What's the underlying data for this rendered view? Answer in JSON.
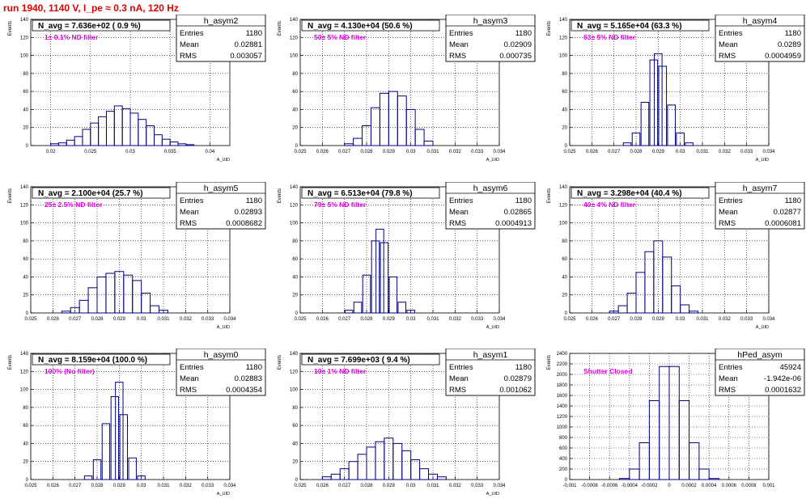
{
  "page_title": "run 1940,  1140 V, I_pe ≈ 0.3 nA, 120 Hz",
  "colors": {
    "title": "#e00000",
    "annotation": "#e600e6",
    "histogram": "#000080",
    "grid": "#000000"
  },
  "chart_data": [
    {
      "type": "histogram",
      "hist_name": "h_asym2",
      "title": "N_avg = 7.636e+02 ( 0.9 %)",
      "annotation": "1± 0.1% ND filter",
      "stats": [
        [
          "Entries",
          "1180"
        ],
        [
          "Mean",
          "0.02881"
        ],
        [
          "RMS",
          "0.003057"
        ]
      ],
      "xlabel": "A_UID",
      "ylabel": "Events",
      "xlim": [
        0.0175,
        0.0425
      ],
      "ylim": [
        0,
        140
      ],
      "xticks": [
        0.02,
        0.025,
        0.03,
        0.035,
        0.04
      ],
      "xticklabels": [
        "0.02",
        "0.025",
        "0.03",
        "0.035",
        "0.04"
      ],
      "yticks": [
        0,
        20,
        40,
        60,
        80,
        100,
        120,
        140
      ],
      "yticklabels": [
        "0",
        "20",
        "40",
        "60",
        "80",
        "100",
        "120",
        "140"
      ],
      "x": [
        0.0205,
        0.0215,
        0.0225,
        0.0235,
        0.0245,
        0.0255,
        0.0265,
        0.0275,
        0.0285,
        0.0295,
        0.0305,
        0.0315,
        0.0325,
        0.0335,
        0.0345,
        0.0355,
        0.0365,
        0.0375
      ],
      "values": [
        2,
        3,
        6,
        10,
        18,
        25,
        32,
        38,
        44,
        41,
        36,
        29,
        22,
        12,
        7,
        4,
        2,
        1
      ]
    },
    {
      "type": "histogram",
      "hist_name": "h_asym3",
      "title": "N_avg = 4.130e+04 (50.6 %)",
      "annotation": "50± 5% ND filter",
      "stats": [
        [
          "Entries",
          "1180"
        ],
        [
          "Mean",
          "0.02909"
        ],
        [
          "RMS",
          "0.000735"
        ]
      ],
      "xlabel": "A_UID",
      "ylabel": "Events",
      "xlim": [
        0.025,
        0.034
      ],
      "ylim": [
        0,
        140
      ],
      "xticks": [
        0.025,
        0.026,
        0.027,
        0.028,
        0.029,
        0.03,
        0.031,
        0.032,
        0.033,
        0.034
      ],
      "xticklabels": [
        "0.025",
        "0.026",
        "0.027",
        "0.028",
        "0.029",
        "0.03",
        "0.031",
        "0.032",
        "0.033",
        "0.034"
      ],
      "yticks": [
        0,
        20,
        40,
        60,
        80,
        100,
        120,
        140
      ],
      "yticklabels": [
        "0",
        "20",
        "40",
        "60",
        "80",
        "100",
        "120",
        "140"
      ],
      "x": [
        0.0272,
        0.0276,
        0.028,
        0.0284,
        0.0288,
        0.0292,
        0.0296,
        0.03,
        0.0304,
        0.0308
      ],
      "values": [
        2,
        8,
        22,
        42,
        58,
        60,
        55,
        40,
        18,
        5
      ]
    },
    {
      "type": "histogram",
      "hist_name": "h_asym4",
      "title": "N_avg = 5.165e+04 (63.3 %)",
      "annotation": "63± 5% ND filter",
      "stats": [
        [
          "Entries",
          "1180"
        ],
        [
          "Mean",
          "0.0289"
        ],
        [
          "RMS",
          "0.0004959"
        ]
      ],
      "xlabel": "A_UID",
      "ylabel": "Events",
      "xlim": [
        0.025,
        0.034
      ],
      "ylim": [
        0,
        140
      ],
      "xticks": [
        0.025,
        0.026,
        0.027,
        0.028,
        0.029,
        0.03,
        0.031,
        0.032,
        0.033,
        0.034
      ],
      "xticklabels": [
        "0.025",
        "0.026",
        "0.027",
        "0.028",
        "0.029",
        "0.03",
        "0.031",
        "0.032",
        "0.033",
        "0.034"
      ],
      "yticks": [
        0,
        20,
        40,
        60,
        80,
        100,
        120,
        140
      ],
      "yticklabels": [
        "0",
        "20",
        "40",
        "60",
        "80",
        "100",
        "120",
        "140"
      ],
      "x": [
        0.0276,
        0.028,
        0.0284,
        0.0288,
        0.029,
        0.0292,
        0.0296,
        0.03,
        0.0304
      ],
      "values": [
        3,
        14,
        48,
        95,
        102,
        88,
        45,
        14,
        3
      ]
    },
    {
      "type": "histogram",
      "hist_name": "h_asym5",
      "title": "N_avg = 2.100e+04 (25.7 %)",
      "annotation": "25± 2.5% ND filter",
      "stats": [
        [
          "Entries",
          "1180"
        ],
        [
          "Mean",
          "0.02893"
        ],
        [
          "RMS",
          "0.0008682"
        ]
      ],
      "xlabel": "A_UID",
      "ylabel": "Events",
      "xlim": [
        0.025,
        0.034
      ],
      "ylim": [
        0,
        140
      ],
      "xticks": [
        0.025,
        0.026,
        0.027,
        0.028,
        0.029,
        0.03,
        0.031,
        0.032,
        0.033,
        0.034
      ],
      "xticklabels": [
        "0.025",
        "0.026",
        "0.027",
        "0.028",
        "0.029",
        "0.03",
        "0.031",
        "0.032",
        "0.033",
        "0.034"
      ],
      "yticks": [
        0,
        20,
        40,
        60,
        80,
        100,
        120,
        140
      ],
      "yticklabels": [
        "0",
        "20",
        "40",
        "60",
        "80",
        "100",
        "120",
        "140"
      ],
      "x": [
        0.0266,
        0.027,
        0.0274,
        0.0278,
        0.0282,
        0.0286,
        0.029,
        0.0294,
        0.0298,
        0.0302,
        0.0306,
        0.031
      ],
      "values": [
        2,
        6,
        14,
        28,
        40,
        44,
        46,
        42,
        36,
        22,
        8,
        3
      ]
    },
    {
      "type": "histogram",
      "hist_name": "h_asym6",
      "title": "N_avg = 6.513e+04 (79.8 %)",
      "annotation": "79± 5% ND filter",
      "stats": [
        [
          "Entries",
          "1180"
        ],
        [
          "Mean",
          "0.02865"
        ],
        [
          "RMS",
          "0.0004913"
        ]
      ],
      "xlabel": "A_UID",
      "ylabel": "Events",
      "xlim": [
        0.025,
        0.034
      ],
      "ylim": [
        0,
        140
      ],
      "xticks": [
        0.025,
        0.026,
        0.027,
        0.028,
        0.029,
        0.03,
        0.031,
        0.032,
        0.033,
        0.034
      ],
      "xticklabels": [
        "0.025",
        "0.026",
        "0.027",
        "0.028",
        "0.029",
        "0.03",
        "0.031",
        "0.032",
        "0.033",
        "0.034"
      ],
      "yticks": [
        0,
        20,
        40,
        60,
        80,
        100,
        120,
        140
      ],
      "yticklabels": [
        "0",
        "20",
        "40",
        "60",
        "80",
        "100",
        "120",
        "140"
      ],
      "x": [
        0.0272,
        0.0276,
        0.028,
        0.0284,
        0.0286,
        0.0288,
        0.0292,
        0.0296,
        0.03
      ],
      "values": [
        3,
        12,
        42,
        80,
        93,
        78,
        40,
        12,
        3
      ]
    },
    {
      "type": "histogram",
      "hist_name": "h_asym7",
      "title": "N_avg = 3.298e+04 (40.4 %)",
      "annotation": "40± 4% ND filter",
      "stats": [
        [
          "Entries",
          "1180"
        ],
        [
          "Mean",
          "0.02877"
        ],
        [
          "RMS",
          "0.0006081"
        ]
      ],
      "xlabel": "A_UID",
      "ylabel": "Events",
      "xlim": [
        0.025,
        0.034
      ],
      "ylim": [
        0,
        140
      ],
      "xticks": [
        0.025,
        0.026,
        0.027,
        0.028,
        0.029,
        0.03,
        0.031,
        0.032,
        0.033,
        0.034
      ],
      "xticklabels": [
        "0.025",
        "0.026",
        "0.027",
        "0.028",
        "0.029",
        "0.03",
        "0.031",
        "0.032",
        "0.033",
        "0.034"
      ],
      "yticks": [
        0,
        20,
        40,
        60,
        80,
        100,
        120,
        140
      ],
      "yticklabels": [
        "0",
        "20",
        "40",
        "60",
        "80",
        "100",
        "120",
        "140"
      ],
      "x": [
        0.027,
        0.0274,
        0.0278,
        0.0282,
        0.0286,
        0.029,
        0.0294,
        0.0298,
        0.0302,
        0.0306
      ],
      "values": [
        2,
        8,
        22,
        45,
        68,
        80,
        62,
        30,
        9,
        2
      ]
    },
    {
      "type": "histogram",
      "hist_name": "h_asym0",
      "title": "N_avg = 8.159e+04 (100.0 %)",
      "annotation": "100% (No filter)",
      "stats": [
        [
          "Entries",
          "1180"
        ],
        [
          "Mean",
          "0.02883"
        ],
        [
          "RMS",
          "0.0004354"
        ]
      ],
      "xlabel": "A_UID",
      "ylabel": "Events",
      "xlim": [
        0.025,
        0.034
      ],
      "ylim": [
        0,
        140
      ],
      "xticks": [
        0.025,
        0.026,
        0.027,
        0.028,
        0.029,
        0.03,
        0.031,
        0.032,
        0.033,
        0.034
      ],
      "xticklabels": [
        "0.025",
        "0.026",
        "0.027",
        "0.028",
        "0.029",
        "0.03",
        "0.031",
        "0.032",
        "0.033",
        "0.034"
      ],
      "yticks": [
        0,
        20,
        40,
        60,
        80,
        100,
        120,
        140
      ],
      "yticklabels": [
        "0",
        "20",
        "40",
        "60",
        "80",
        "100",
        "120",
        "140"
      ],
      "x": [
        0.0276,
        0.028,
        0.0284,
        0.0288,
        0.029,
        0.0292,
        0.0296,
        0.03
      ],
      "values": [
        4,
        22,
        62,
        92,
        108,
        72,
        24,
        4
      ]
    },
    {
      "type": "histogram",
      "hist_name": "h_asym1",
      "title": "N_avg = 7.699e+03 ( 9.4 %)",
      "annotation": "10± 1% ND filter",
      "stats": [
        [
          "Entries",
          "1180"
        ],
        [
          "Mean",
          "0.02879"
        ],
        [
          "RMS",
          "0.001062"
        ]
      ],
      "xlabel": "A_UID",
      "ylabel": "Events",
      "xlim": [
        0.025,
        0.034
      ],
      "ylim": [
        0,
        140
      ],
      "xticks": [
        0.025,
        0.026,
        0.027,
        0.028,
        0.029,
        0.03,
        0.031,
        0.032,
        0.033,
        0.034
      ],
      "xticklabels": [
        "0.025",
        "0.026",
        "0.027",
        "0.028",
        "0.029",
        "0.03",
        "0.031",
        "0.032",
        "0.033",
        "0.034"
      ],
      "yticks": [
        0,
        20,
        40,
        60,
        80,
        100,
        120,
        140
      ],
      "yticklabels": [
        "0",
        "20",
        "40",
        "60",
        "80",
        "100",
        "120",
        "140"
      ],
      "x": [
        0.0262,
        0.0266,
        0.027,
        0.0274,
        0.0278,
        0.0282,
        0.0286,
        0.029,
        0.0294,
        0.0298,
        0.0302,
        0.0306,
        0.031,
        0.0314
      ],
      "values": [
        3,
        6,
        12,
        20,
        28,
        36,
        42,
        46,
        40,
        32,
        22,
        12,
        6,
        3
      ]
    },
    {
      "type": "histogram",
      "hist_name": "hPed_asym",
      "title": "",
      "annotation": "Shutter Closed",
      "stats": [
        [
          "Entries",
          "45924"
        ],
        [
          "Mean",
          "-1.942e-06"
        ],
        [
          "RMS",
          "0.0001632"
        ]
      ],
      "xlabel": "",
      "ylabel": "Events",
      "xlim": [
        -0.001,
        0.001
      ],
      "ylim": [
        0,
        2400
      ],
      "xticks": [
        -0.001,
        -0.0008,
        -0.0006,
        -0.0004,
        -0.0002,
        0,
        0.0002,
        0.0004,
        0.0006,
        0.0008,
        0.001
      ],
      "xticklabels": [
        "-0.001",
        "-0.0008",
        "-0.0006",
        "-0.0004",
        "-0.0002",
        "0",
        "0.0002",
        "0.0004",
        "0.0006",
        "0.0008",
        "0.001"
      ],
      "yticks": [
        0,
        200,
        400,
        600,
        800,
        1000,
        1200,
        1400,
        1600,
        1800,
        2000,
        2200,
        2400
      ],
      "yticklabels": [
        "0",
        "200",
        "400",
        "600",
        "800",
        "1000",
        "1200",
        "1400",
        "1600",
        "1800",
        "2000",
        "2200",
        "2400"
      ],
      "x": [
        -0.00045,
        -0.00035,
        -0.00025,
        -0.00015,
        -5e-05,
        5e-05,
        0.00015,
        0.00025,
        0.00035,
        0.00045
      ],
      "values": [
        20,
        200,
        700,
        1500,
        2150,
        2150,
        1500,
        700,
        200,
        20
      ]
    }
  ]
}
